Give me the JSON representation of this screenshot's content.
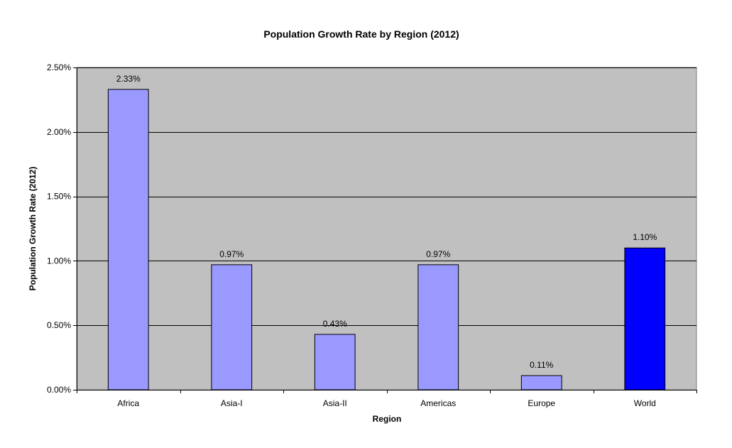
{
  "chart_data": {
    "type": "bar",
    "title": "Population Growth Rate by Region (2012)",
    "xlabel": "Region",
    "ylabel": "Population Growth Rate (2012)",
    "categories": [
      "Africa",
      "Asia-I",
      "Asia-II",
      "Americas",
      "Europe",
      "World"
    ],
    "values": [
      2.33,
      0.97,
      0.43,
      0.97,
      0.11,
      1.1
    ],
    "data_labels": [
      "2.33%",
      "0.97%",
      "0.43%",
      "0.97%",
      "0.11%",
      "1.10%"
    ],
    "value_unit": "%",
    "ylim": [
      0,
      2.5
    ],
    "yticks": [
      0,
      0.5,
      1.0,
      1.5,
      2.0,
      2.5
    ],
    "ytick_labels": [
      "0.00%",
      "0.50%",
      "1.00%",
      "1.50%",
      "2.00%",
      "2.50%"
    ],
    "grid": true,
    "legend": "none",
    "colors": {
      "plot_background": "#c0c0c0",
      "bar": "#9999ff",
      "highlight_bar": "#0000ff",
      "highlight_category": "World",
      "bar_outline": "#000000",
      "gridline": "#000000"
    }
  }
}
